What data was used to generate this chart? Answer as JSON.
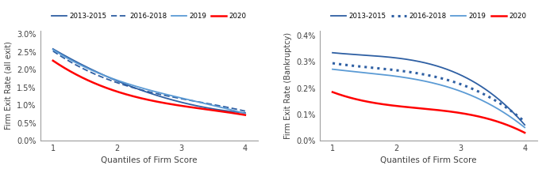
{
  "left": {
    "ylabel": "Firm Exit Rate (all exit)",
    "xlabel": "Quantiles of Firm Score",
    "xlim": [
      0.8,
      4.2
    ],
    "ylim": [
      0.0,
      0.031
    ],
    "yticks": [
      0.0,
      0.005,
      0.01,
      0.015,
      0.02,
      0.025,
      0.03
    ],
    "ytick_labels": [
      "0.0%",
      "0.5%",
      "1.0%",
      "1.5%",
      "2.0%",
      "2.5%",
      "3.0%"
    ],
    "xticks": [
      1,
      2,
      3,
      4
    ],
    "series": [
      {
        "label": "2013-2015",
        "x": [
          1,
          2,
          3,
          4
        ],
        "y": [
          0.0258,
          0.0168,
          0.0108,
          0.0078
        ],
        "color": "#2E5FA3",
        "linestyle": "solid",
        "linewidth": 1.3
      },
      {
        "label": "2016-2018",
        "x": [
          1,
          2,
          3,
          4
        ],
        "y": [
          0.0252,
          0.0163,
          0.0118,
          0.0083
        ],
        "color": "#2E5FA3",
        "linestyle": "dashed",
        "linewidth": 1.3,
        "dashes": [
          4,
          2
        ]
      },
      {
        "label": "2019",
        "x": [
          1,
          2,
          3,
          4
        ],
        "y": [
          0.0256,
          0.017,
          0.012,
          0.0076
        ],
        "color": "#5B9BD5",
        "linestyle": "solid",
        "linewidth": 1.3
      },
      {
        "label": "2020",
        "x": [
          1,
          2,
          3,
          4
        ],
        "y": [
          0.0225,
          0.0138,
          0.0098,
          0.0072
        ],
        "color": "#FF0000",
        "linestyle": "solid",
        "linewidth": 1.8
      }
    ]
  },
  "right": {
    "ylabel": "Firm Exit Rate (Bankruptcy)",
    "xlabel": "Quantiles of Firm Score",
    "xlim": [
      0.8,
      4.2
    ],
    "ylim": [
      0.0,
      0.0042
    ],
    "yticks": [
      0.0,
      0.001,
      0.002,
      0.003,
      0.004
    ],
    "ytick_labels": [
      "0.0%",
      "0.1%",
      "0.2%",
      "0.3%",
      "0.4%"
    ],
    "xticks": [
      1,
      2,
      3,
      4
    ],
    "series": [
      {
        "label": "2013-2015",
        "x": [
          1,
          2,
          3,
          4
        ],
        "y": [
          0.00335,
          0.00315,
          0.0025,
          0.0006
        ],
        "color": "#2E5FA3",
        "linestyle": "solid",
        "linewidth": 1.3
      },
      {
        "label": "2016-2018",
        "x": [
          1,
          2,
          3,
          4
        ],
        "y": [
          0.00295,
          0.00268,
          0.00215,
          0.00072
        ],
        "color": "#2E5FA3",
        "linestyle": "dotted",
        "linewidth": 2.2
      },
      {
        "label": "2019",
        "x": [
          1,
          2,
          3,
          4
        ],
        "y": [
          0.00272,
          0.00245,
          0.00188,
          0.0005
        ],
        "color": "#5B9BD5",
        "linestyle": "solid",
        "linewidth": 1.3
      },
      {
        "label": "2020",
        "x": [
          1,
          2,
          3,
          4
        ],
        "y": [
          0.00185,
          0.00132,
          0.00105,
          0.0003
        ],
        "color": "#FF0000",
        "linestyle": "solid",
        "linewidth": 1.8
      }
    ]
  },
  "bg_color": "#FFFFFF",
  "axes_color": "#A0A0A0",
  "tick_color": "#404040"
}
